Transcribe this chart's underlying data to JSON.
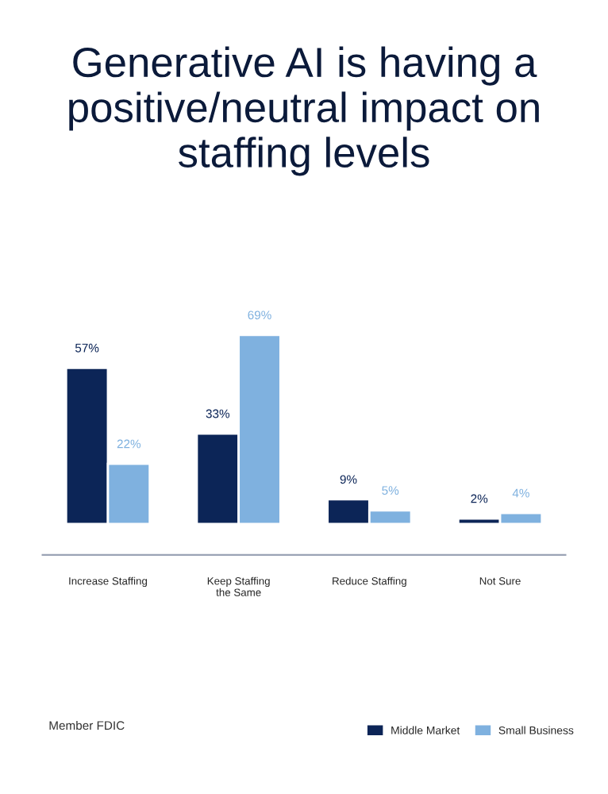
{
  "chart_data": {
    "type": "bar",
    "title": "Generative AI is having a positive/neutral impact on staffing levels",
    "categories": [
      "Increase Staffing",
      "Keep Staffing\nthe Same",
      "Reduce Staffing",
      "Not Sure"
    ],
    "series": [
      {
        "name": "Middle Market",
        "color": "#0c2557",
        "values": [
          57,
          33,
          9,
          2
        ],
        "value_labels": [
          "57%",
          "33%",
          "9%",
          "2%"
        ]
      },
      {
        "name": "Small Business",
        "color": "#7fb1df",
        "values": [
          22,
          69,
          5,
          4
        ],
        "value_labels": [
          "22%",
          "69%",
          "5%",
          "4%"
        ]
      }
    ],
    "grid": false,
    "legend": "bottom right",
    "annotations": [
      "Member FDIC"
    ]
  }
}
